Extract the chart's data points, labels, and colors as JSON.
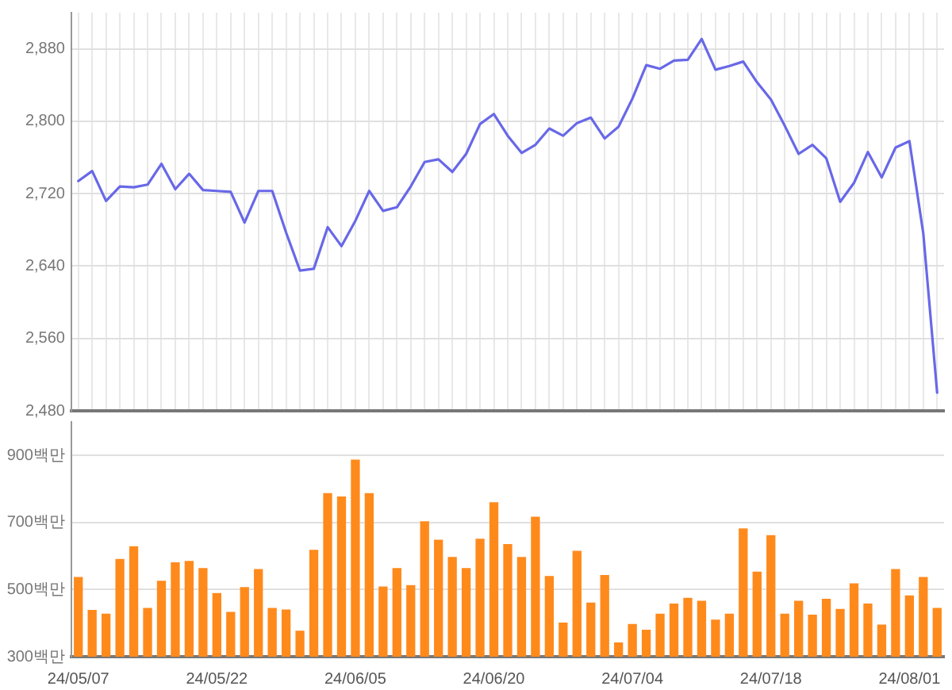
{
  "chart_data": [
    {
      "type": "line",
      "categories": [
        null,
        null,
        null,
        null,
        null,
        null,
        null,
        null,
        null,
        null,
        null,
        null,
        null,
        null,
        null,
        null,
        null,
        null,
        null,
        null,
        null,
        null,
        null,
        null,
        null,
        null,
        null,
        null,
        null,
        null,
        null,
        null,
        null,
        null,
        null,
        null,
        null,
        null,
        null,
        null,
        null,
        null,
        null,
        null,
        null,
        null,
        null,
        null,
        null,
        null,
        null,
        null,
        null,
        null,
        null,
        null,
        null,
        null,
        null,
        null,
        null,
        null,
        null
      ],
      "series": [
        {
          "color": "#6868e8",
          "values": [
            2734,
            2745,
            2712,
            2728,
            2727,
            2730,
            2753,
            2725,
            2742,
            2724,
            2723,
            2722,
            2688,
            2723,
            2723,
            2677,
            2635,
            2637,
            2683,
            2662,
            2690,
            2723,
            2701,
            2705,
            2728,
            2755,
            2758,
            2744,
            2764,
            2797,
            2808,
            2784,
            2765,
            2774,
            2792,
            2784,
            2798,
            2804,
            2781,
            2794,
            2825,
            2862,
            2858,
            2867,
            2868,
            2891,
            2857,
            2861,
            2866,
            2843,
            2824,
            2795,
            2764,
            2774,
            2759,
            2711,
            2732,
            2766,
            2738,
            2771,
            2778,
            2676,
            2500
          ]
        }
      ],
      "ylim": [
        2480,
        2920
      ],
      "yticks": [
        {
          "value": 2480,
          "label": "2,480"
        },
        {
          "value": 2560,
          "label": "2,560"
        },
        {
          "value": 2640,
          "label": "2,640"
        },
        {
          "value": 2720,
          "label": "2,720"
        },
        {
          "value": 2800,
          "label": "2,800"
        },
        {
          "value": 2880,
          "label": "2,880"
        }
      ],
      "grid": true,
      "tick_labels": "y",
      "marker": "none"
    },
    {
      "type": "bar",
      "categories": [
        "24/05/07",
        null,
        null,
        null,
        null,
        null,
        null,
        null,
        null,
        null,
        "24/05/22",
        null,
        null,
        null,
        null,
        null,
        null,
        null,
        null,
        null,
        "24/06/05",
        null,
        null,
        null,
        null,
        null,
        null,
        null,
        null,
        null,
        "24/06/20",
        null,
        null,
        null,
        null,
        null,
        null,
        null,
        null,
        null,
        "24/07/04",
        null,
        null,
        null,
        null,
        null,
        null,
        null,
        null,
        null,
        "24/07/18",
        null,
        null,
        null,
        null,
        null,
        null,
        null,
        null,
        null,
        "24/08/01",
        null,
        null
      ],
      "series": [
        {
          "color": "#ff8a1c",
          "values": [
            536,
            438,
            427,
            590,
            628,
            444,
            525,
            580,
            584,
            563,
            488,
            432,
            506,
            560,
            444,
            439,
            376,
            617,
            786,
            776,
            886,
            786,
            508,
            563,
            512,
            702,
            647,
            596,
            563,
            650,
            759,
            634,
            596,
            716,
            539,
            400,
            614,
            460,
            542,
            341,
            396,
            379,
            427,
            457,
            474,
            465,
            409,
            427,
            681,
            552,
            661,
            427,
            465,
            424,
            471,
            441,
            517,
            457,
            394,
            560,
            481,
            536,
            444
          ]
        }
      ],
      "ylim": [
        300,
        1000
      ],
      "yticks": [
        {
          "value": 300,
          "label": "300백만"
        },
        {
          "value": 500,
          "label": "500백만"
        },
        {
          "value": 700,
          "label": "700백만"
        },
        {
          "value": 900,
          "label": "900백만"
        }
      ],
      "grid": "y"
    }
  ]
}
